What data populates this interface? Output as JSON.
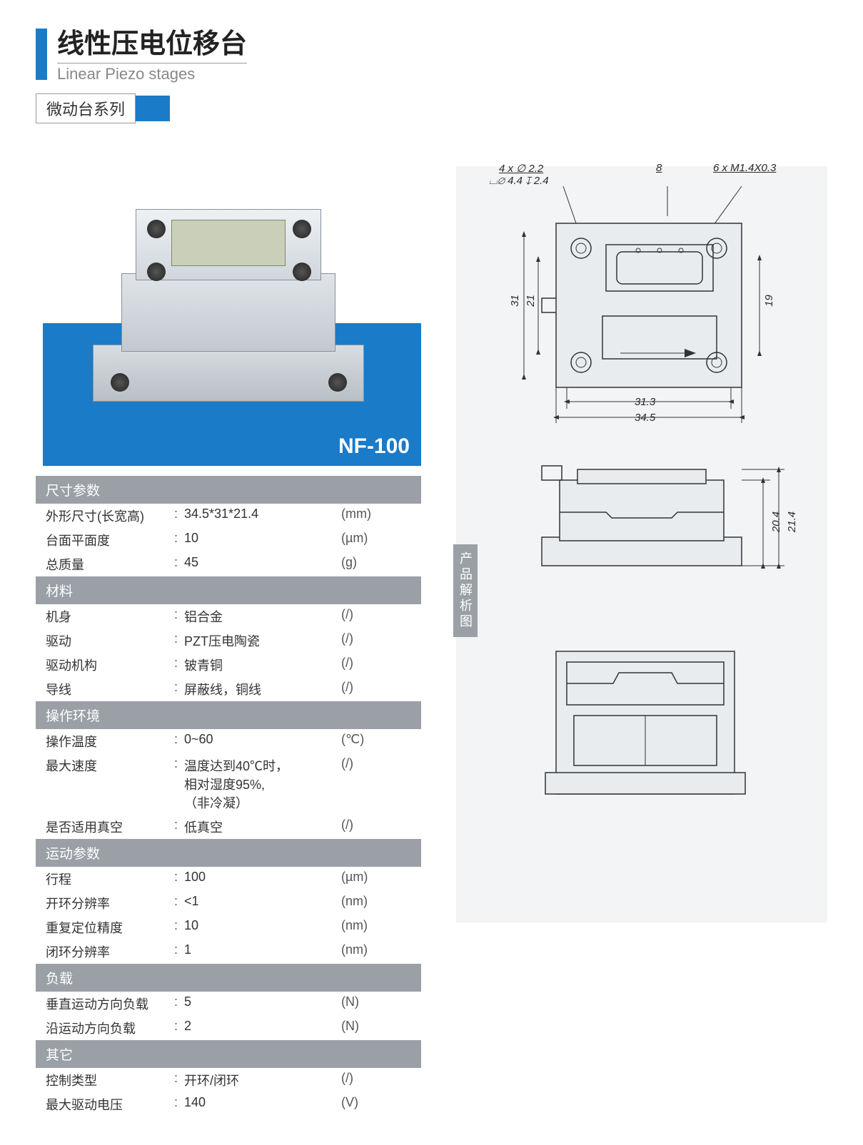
{
  "colors": {
    "accent": "#1a7bc8",
    "header_bg": "#9aa0a6",
    "header_fg": "#ffffff",
    "text": "#333333",
    "muted": "#888888",
    "panel_bg": "#f3f4f5",
    "row_alt": "#f1f2f4"
  },
  "header": {
    "title_cn": "线性压电位移台",
    "title_en": "Linear Piezo stages",
    "subtitle": "微动台系列"
  },
  "product": {
    "model": "NF-100"
  },
  "right_panel": {
    "tab_label": "产品解析图",
    "annotations": {
      "holes_a": "4 x ∅ 2.2",
      "holes_b": "⌴∅ 4.4 ↧ 2.4",
      "dim_8": "8",
      "threads": "6 x  M1.4X0.3",
      "w_313": "31.3",
      "w_345": "34.5",
      "h_31": "31",
      "h_21": "21",
      "h_19": "19",
      "side_204": "20.4",
      "side_214": "21.4"
    }
  },
  "spec_sections": [
    {
      "title": "尺寸参数",
      "rows": [
        {
          "label": "外形尺寸(长宽高)",
          "value": "34.5*31*21.4",
          "unit": "(mm)"
        },
        {
          "label": "台面平面度",
          "value": "10",
          "unit": "(µm)"
        },
        {
          "label": "总质量",
          "value": "45",
          "unit": "(g)"
        }
      ]
    },
    {
      "title": "材料",
      "rows": [
        {
          "label": "机身",
          "value": "铝合金",
          "unit": "(/)"
        },
        {
          "label": "驱动",
          "value": "PZT压电陶瓷",
          "unit": "(/)"
        },
        {
          "label": "驱动机构",
          "value": "铍青铜",
          "unit": "(/)"
        },
        {
          "label": "导线",
          "value": "屏蔽线，铜线",
          "unit": "(/)"
        }
      ]
    },
    {
      "title": "操作环境",
      "rows": [
        {
          "label": "操作温度",
          "value": "0~60",
          "unit": "(℃)"
        },
        {
          "label": "最大速度",
          "value": "温度达到40℃时，\n相对湿度95%,\n（非冷凝）",
          "unit": "(/)"
        },
        {
          "label": "是否适用真空",
          "value": "低真空",
          "unit": "(/)"
        }
      ]
    },
    {
      "title": "运动参数",
      "rows": [
        {
          "label": "行程",
          "value": "100",
          "unit": "(µm)"
        },
        {
          "label": "开环分辨率",
          "value": "<1",
          "unit": "(nm)"
        },
        {
          "label": "重复定位精度",
          "value": "10",
          "unit": "(nm)"
        },
        {
          "label": "闭环分辨率",
          "value": "1",
          "unit": "(nm)"
        }
      ]
    },
    {
      "title": "负载",
      "rows": [
        {
          "label": "垂直运动方向负载",
          "value": "5",
          "unit": "(N)"
        },
        {
          "label": "沿运动方向负载",
          "value": "2",
          "unit": "(N)"
        }
      ]
    },
    {
      "title": "其它",
      "rows": [
        {
          "label": "控制类型",
          "value": "开环/闭环",
          "unit": "(/)"
        },
        {
          "label": "最大驱动电压",
          "value": "140",
          "unit": "(V)"
        }
      ]
    }
  ]
}
